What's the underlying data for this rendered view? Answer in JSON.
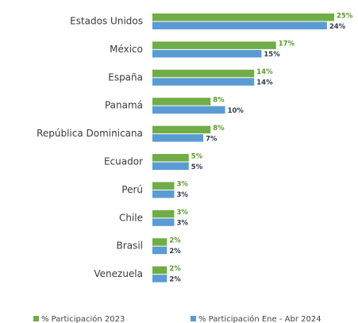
{
  "chart_data": {
    "type": "hbar",
    "categories": [
      "Estados Unidos",
      "México",
      "España",
      "Panamá",
      "República Dominicana",
      "Ecuador",
      "Perú",
      "Chile",
      "Brasil",
      "Venezuela"
    ],
    "series": [
      {
        "name": "% Participación 2023",
        "color": "#70ad47",
        "label_color": "#5a9a2e",
        "values": [
          25,
          17,
          14,
          8,
          8,
          5,
          3,
          3,
          2,
          2
        ],
        "value_labels": [
          "25%",
          "17%",
          "14%",
          "8%",
          "8%",
          "5%",
          "3%",
          "3%",
          "2%",
          "2%"
        ]
      },
      {
        "name": "% Participación Ene - Abr 2024",
        "color": "#5b9bd5",
        "label_color": "#2f3b4c",
        "values": [
          24,
          15,
          14,
          10,
          7,
          5,
          3,
          3,
          2,
          2
        ],
        "value_labels": [
          "24%",
          "15%",
          "14%",
          "10%",
          "7%",
          "5%",
          "3%",
          "3%",
          "2%",
          "2%"
        ]
      }
    ],
    "legend": "bottom"
  }
}
